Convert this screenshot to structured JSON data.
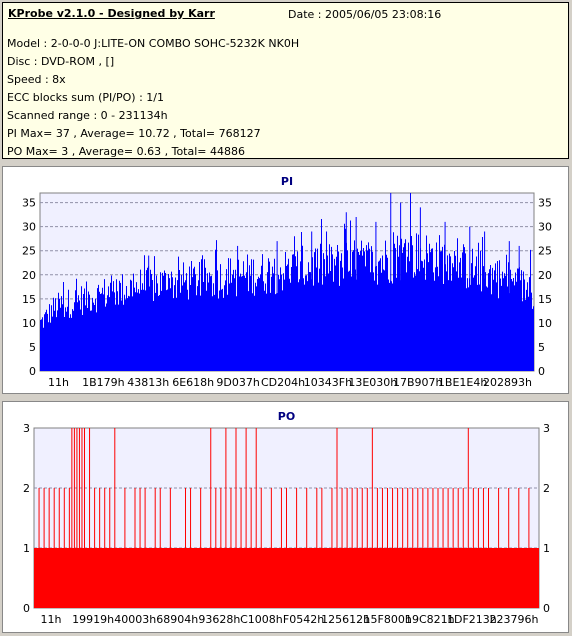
{
  "info": {
    "title": "KProbe v2.1.0 - Designed by Karr",
    "date": "Date : 2005/06/05 23:08:16",
    "lines": [
      "Model : 2-0-0-0 J:LITE-ON COMBO SOHC-5232K NK0H",
      "Disc : DVD-ROM ,  []",
      "Speed : 8x",
      "ECC blocks sum (PI/PO) : 1/1",
      "Scanned range : 0 - 231134h",
      "PI Max= 37 , Average= 10.72 , Total= 768127",
      "PO Max= 3 , Average= 0.63 , Total= 44886"
    ]
  },
  "colors": {
    "pi": "#0000ff",
    "po": "#ff0000",
    "plot_bg": "#f0f0ff",
    "grid": "#9090a8"
  },
  "chart_data": [
    {
      "type": "bar",
      "title": "PI",
      "ylim": [
        0,
        37
      ],
      "yticks": [
        0,
        5,
        10,
        15,
        20,
        25,
        30,
        35
      ],
      "x_range": [
        0,
        231134
      ],
      "xtick_labels": [
        "11h",
        "1B179h",
        "43813h",
        "6E618h",
        "9D037h",
        "CD204h",
        "10343Fh",
        "13E030h",
        "17B907h",
        "1BE1E4h",
        "202893h"
      ],
      "summary": {
        "max": 37,
        "average": 10.72,
        "total": 768127
      },
      "profile_x": [
        0,
        0.03,
        0.1,
        0.2,
        0.3,
        0.4,
        0.5,
        0.6,
        0.7,
        0.75,
        0.8,
        0.85,
        0.9,
        0.95,
        1.0
      ],
      "profile_y": [
        9,
        12,
        14,
        16,
        17,
        18,
        19,
        20,
        21,
        22,
        21.5,
        20,
        18.5,
        17,
        15
      ],
      "peaks": [
        [
          0.71,
          37
        ],
        [
          0.75,
          37
        ],
        [
          0.73,
          35
        ],
        [
          0.77,
          34
        ],
        [
          0.62,
          33
        ],
        [
          0.64,
          32
        ],
        [
          0.82,
          31
        ],
        [
          0.68,
          31
        ],
        [
          0.55,
          29
        ],
        [
          0.58,
          29
        ],
        [
          0.87,
          30
        ],
        [
          0.9,
          29
        ],
        [
          0.95,
          27
        ],
        [
          0.97,
          26
        ],
        [
          0.4,
          26
        ],
        [
          0.22,
          24
        ],
        [
          0.48,
          27
        ]
      ]
    },
    {
      "type": "bar",
      "title": "PO",
      "ylim": [
        0,
        3
      ],
      "yticks": [
        0,
        1,
        2,
        3
      ],
      "x_range": [
        0,
        231134
      ],
      "xtick_labels": [
        "11h",
        "19919h",
        "40003h",
        "68904h",
        "93628h",
        "C1008h",
        "F0542h",
        "125612h",
        "15F800h",
        "19C821h",
        "1DF213h",
        "223796h"
      ],
      "summary": {
        "max": 3,
        "average": 0.63,
        "total": 44886
      },
      "spikes3": [
        0.075,
        0.08,
        0.085,
        0.09,
        0.095,
        0.1,
        0.11,
        0.16,
        0.35,
        0.38,
        0.4,
        0.42,
        0.44,
        0.6,
        0.67,
        0.86
      ],
      "spikes2": [
        0.01,
        0.02,
        0.03,
        0.04,
        0.05,
        0.06,
        0.07,
        0.12,
        0.13,
        0.14,
        0.15,
        0.18,
        0.2,
        0.21,
        0.22,
        0.24,
        0.25,
        0.27,
        0.3,
        0.31,
        0.33,
        0.36,
        0.37,
        0.39,
        0.41,
        0.43,
        0.45,
        0.47,
        0.49,
        0.5,
        0.52,
        0.54,
        0.56,
        0.57,
        0.59,
        0.61,
        0.62,
        0.63,
        0.64,
        0.65,
        0.66,
        0.68,
        0.69,
        0.7,
        0.71,
        0.72,
        0.73,
        0.74,
        0.75,
        0.76,
        0.77,
        0.78,
        0.79,
        0.8,
        0.81,
        0.82,
        0.83,
        0.84,
        0.85,
        0.87,
        0.88,
        0.89,
        0.9,
        0.92,
        0.94,
        0.96,
        0.98
      ]
    }
  ]
}
